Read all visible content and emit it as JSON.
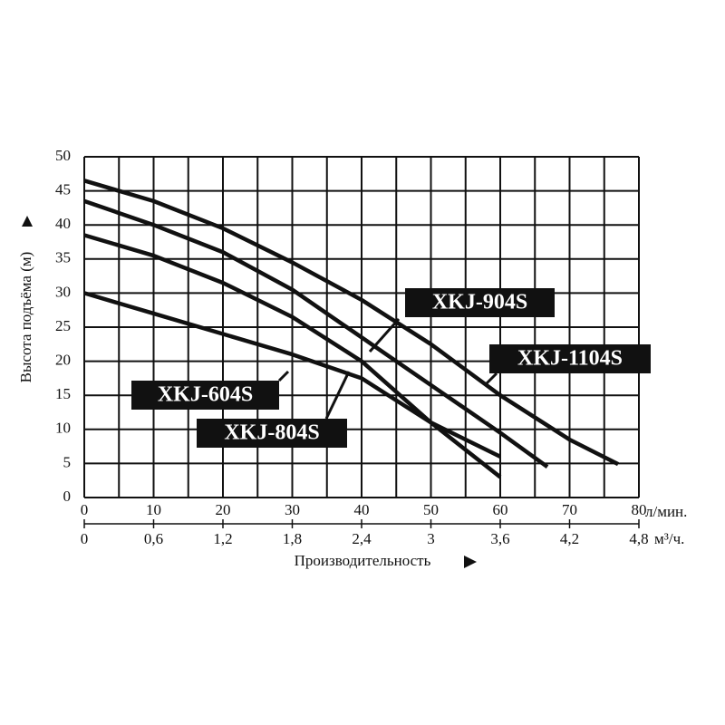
{
  "chart_data": {
    "type": "line",
    "ylabel": "Высота подъёма (м)",
    "xlabel": "Производительность",
    "xunit": "л/мин.",
    "x2unit": "м³/ч.",
    "xlim": [
      0,
      80
    ],
    "xticks": [
      0,
      10,
      20,
      30,
      40,
      50,
      60,
      70,
      80
    ],
    "x2lim": [
      0,
      4.8
    ],
    "x2ticks": [
      0,
      {
        "value": 0.6,
        "label": "0,6"
      },
      {
        "value": 1.2,
        "label": "1,2"
      },
      {
        "value": 1.8,
        "label": "1,8"
      },
      {
        "value": 2.4,
        "label": "2,4"
      },
      3,
      {
        "value": 3.6,
        "label": "3,6"
      },
      {
        "value": 4.2,
        "label": "4,2"
      },
      {
        "value": 4.8,
        "label": "4,8"
      }
    ],
    "ylim": [
      0,
      50
    ],
    "yticks": [
      0,
      5,
      10,
      15,
      20,
      25,
      30,
      35,
      40,
      45,
      50
    ],
    "grid": true,
    "series": [
      {
        "name": "XKJ-604S",
        "color": "#111111",
        "x": [
          0,
          10,
          20,
          30,
          40,
          50,
          60
        ],
        "values": [
          30,
          27,
          24,
          21,
          17.5,
          11,
          6
        ]
      },
      {
        "name": "XKJ-804S",
        "color": "#111111",
        "x": [
          0,
          10,
          20,
          30,
          40,
          50,
          60
        ],
        "values": [
          38.5,
          35.5,
          31.5,
          26.5,
          20,
          11,
          3
        ]
      },
      {
        "name": "XKJ-904S",
        "color": "#111111",
        "x": [
          0,
          10,
          20,
          30,
          40,
          50,
          60,
          66.8
        ],
        "values": [
          43.5,
          40,
          36,
          30.5,
          23.5,
          16.5,
          9.5,
          4.5
        ]
      },
      {
        "name": "XKJ-1104S",
        "color": "#111111",
        "x": [
          0,
          10,
          20,
          30,
          40,
          50,
          60,
          70,
          77
        ],
        "values": [
          46.5,
          43.5,
          39.5,
          34.5,
          29,
          22.5,
          15,
          8.5,
          4.9
        ]
      }
    ]
  }
}
